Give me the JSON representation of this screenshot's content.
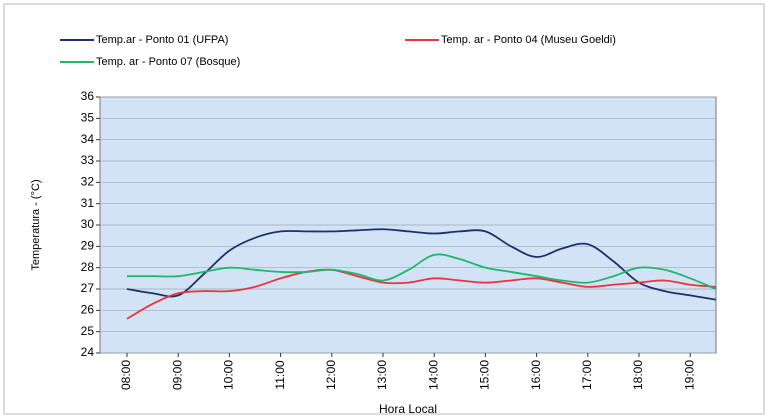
{
  "chart_data": {
    "type": "line",
    "y_label": "Temperatura - (°C)",
    "x_label": "Hora  Local",
    "categories": [
      "08:00",
      null,
      "09:00",
      null,
      "10:00",
      null,
      "11:00",
      null,
      "12:00",
      null,
      "13:00",
      null,
      "14:00",
      null,
      "15:00",
      null,
      "16:00",
      null,
      "17:00",
      null,
      "18:00",
      null,
      "19:00",
      null
    ],
    "series": [
      {
        "name": "Temp.ar - Ponto 01 (UFPA)",
        "color": "#1f2f6e",
        "values": [
          27.0,
          26.8,
          26.7,
          27.7,
          28.8,
          29.4,
          29.7,
          29.7,
          29.7,
          29.75,
          29.8,
          29.7,
          29.6,
          29.7,
          29.7,
          29.0,
          28.5,
          28.9,
          29.1,
          28.3,
          27.3,
          26.9,
          26.7,
          26.5
        ]
      },
      {
        "name": "Temp. ar - Ponto 04 (Museu Goeldi)",
        "color": "#e8343a",
        "values": [
          25.6,
          26.3,
          26.8,
          26.9,
          26.9,
          27.1,
          27.5,
          27.8,
          27.9,
          27.6,
          27.3,
          27.3,
          27.5,
          27.4,
          27.3,
          27.4,
          27.5,
          27.3,
          27.1,
          27.2,
          27.3,
          27.4,
          27.2,
          27.1
        ]
      },
      {
        "name": "Temp. ar - Ponto 07 (Bosque)",
        "color": "#1fb86a",
        "values": [
          27.6,
          27.6,
          27.6,
          27.8,
          28.0,
          27.9,
          27.8,
          27.8,
          27.9,
          27.7,
          27.4,
          27.9,
          28.6,
          28.4,
          28.0,
          27.8,
          27.6,
          27.4,
          27.3,
          27.6,
          28.0,
          27.9,
          27.5,
          27.0
        ]
      }
    ],
    "ylim": [
      24,
      36
    ],
    "yticks": [
      24,
      25,
      26,
      27,
      28,
      29,
      30,
      31,
      32,
      33,
      34,
      35,
      36
    ],
    "grid": true,
    "legend": "top"
  }
}
